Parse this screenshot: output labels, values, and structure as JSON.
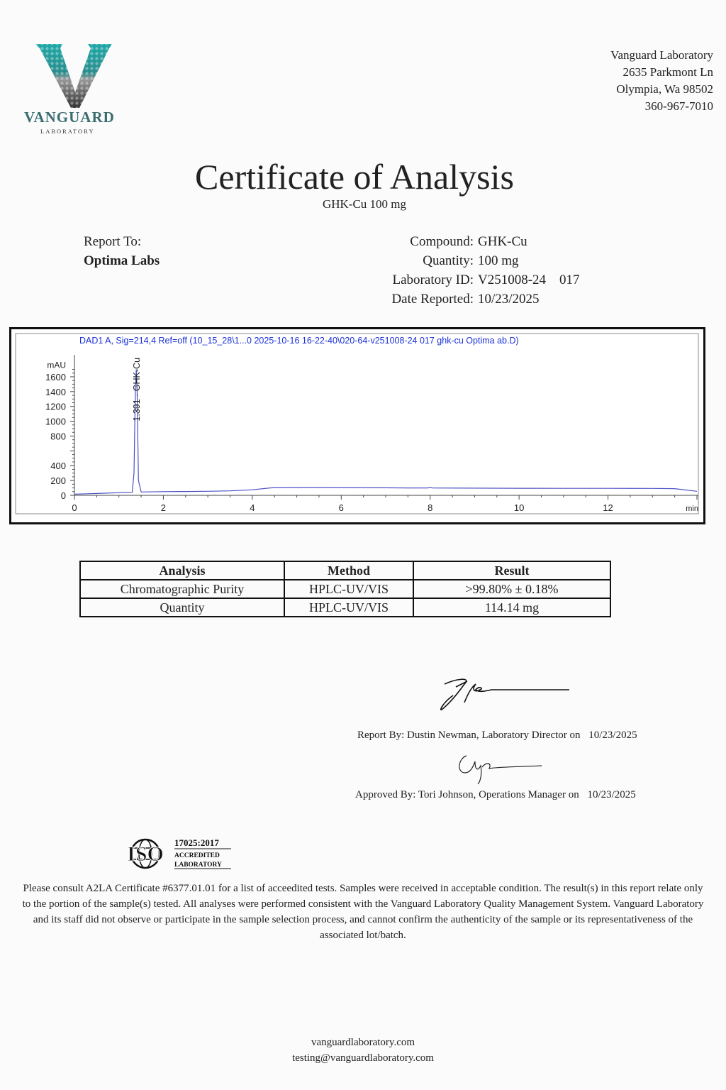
{
  "header": {
    "logo_text": "VANGUARD",
    "logo_subtext": "LABORATORY",
    "address": [
      "Vanguard Laboratory",
      "2635 Parkmont Ln",
      "Olympia, Wa 98502",
      "360-967-7010"
    ],
    "brand_color": "#1fa8a8"
  },
  "title": "Certificate of Analysis",
  "subtitle": "GHK-Cu 100 mg",
  "report_to": {
    "label": "Report To:",
    "client": "Optima Labs"
  },
  "details": [
    {
      "label": "Compound:",
      "value": "GHK-Cu"
    },
    {
      "label": "Quantity:",
      "value": "100 mg"
    },
    {
      "label": "Laboratory ID:",
      "value": "V251008-24    017"
    },
    {
      "label": "Date Reported:",
      "value": "10/23/2025"
    }
  ],
  "chart_data": {
    "type": "line",
    "title": "DAD1 A, Sig=214,4 Ref=off (10_15_28\\1...0 2025-10-16 16-22-40\\020-64-v251008-24 017 ghk-cu Optima ab.D)",
    "ylabel": "mAU",
    "xlabel": "min",
    "xlim": [
      0,
      14
    ],
    "ylim": [
      0,
      1700
    ],
    "x_ticks": [
      "0",
      "2",
      "4",
      "6",
      "8",
      "10",
      "12"
    ],
    "y_ticks": [
      "0",
      "200",
      "400",
      "800",
      "1000",
      "1200",
      "1400",
      "1600"
    ],
    "peak_label": "1.391 - GHK-Cu",
    "series": [
      {
        "x": [
          0,
          0.5,
          1.0,
          1.3,
          1.34,
          1.37,
          1.391,
          1.41,
          1.44,
          1.5,
          2.0,
          2.5,
          3.0,
          3.5,
          4.0,
          4.5,
          5.5,
          6.5,
          7.5,
          7.95,
          8.0,
          8.05,
          9.0,
          10.0,
          11.0,
          12.0,
          13.0,
          13.5,
          14.0
        ],
        "y": [
          15,
          25,
          35,
          40,
          300,
          1400,
          1700,
          1400,
          200,
          45,
          50,
          52,
          55,
          60,
          75,
          105,
          106,
          104,
          100,
          100,
          108,
          100,
          97,
          95,
          94,
          94,
          93,
          90,
          55
        ]
      }
    ],
    "line_color": "#4b4fc4",
    "title_color": "#1a2fd8",
    "grid": false
  },
  "results_table": {
    "columns": [
      "Analysis",
      "Method",
      "Result"
    ],
    "rows": [
      [
        "Chromatographic Purity",
        "HPLC-UV/VIS",
        ">99.80% ± 0.18%"
      ],
      [
        "Quantity",
        "HPLC-UV/VIS",
        "114.14 mg"
      ]
    ]
  },
  "signatures": [
    {
      "text": "Report By: Dustin Newman, Laboratory Director on",
      "date": "10/23/2025"
    },
    {
      "text": "Approved By: Tori Johnson, Operations Manager on",
      "date": "10/23/2025"
    }
  ],
  "iso_badge": {
    "mark": "ISO",
    "standard": "17025:2017",
    "line1": "ACCREDITED",
    "line2": "LABORATORY"
  },
  "footer_text": "Please consult A2LA Certificate #6377.01.01 for a list of acceedited tests. Samples were received in acceptable condition. The result(s) in this report relate only to the portion of the sample(s) tested. All analyses were performed consistent with the Vanguard Laboratory Quality Management System. Vanguard Laboratory and its staff did not observe or participate in the sample selection process, and cannot confirm the authenticity of the sample or its representativeness of the associated lot/batch.",
  "contact": {
    "website": "vanguardlaboratory.com",
    "email": "testing@vanguardlaboratory.com"
  }
}
